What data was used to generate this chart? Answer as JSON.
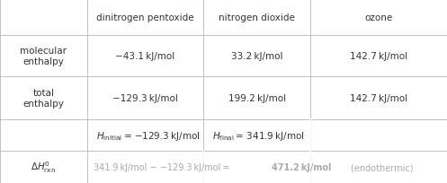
{
  "figsize": [
    4.97,
    2.05
  ],
  "dpi": 100,
  "background": "#ffffff",
  "border_color": "#c0c0c0",
  "col_headers": [
    "dinitrogen pentoxide",
    "nitrogen dioxide",
    "ozone"
  ],
  "mol_enthalpy_vals": [
    "−43.1 kJ/mol",
    "33.2 kJ/mol",
    "142.7 kJ/mol"
  ],
  "tot_enthalpy_vals": [
    "−129.3 kJ/mol",
    "199.2 kJ/mol",
    "142.7 kJ/mol"
  ],
  "text_color": "#333333",
  "light_text_color": "#aaaaaa",
  "font_size": 7.5
}
